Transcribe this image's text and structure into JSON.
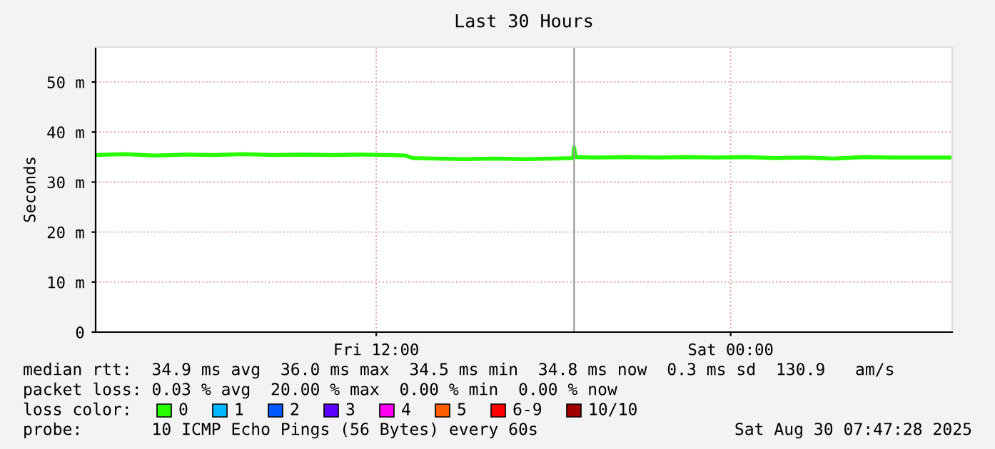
{
  "chart_data": {
    "type": "line",
    "title": "Last 30 Hours",
    "ylabel": "Seconds",
    "xlim": [
      "2025-08-29T02:30",
      "2025-08-30T07:30"
    ],
    "xticks": [
      {
        "value": "2025-08-29T12:00",
        "label": "Fri 12:00"
      },
      {
        "value": "2025-08-30T00:00",
        "label": "Sat 00:00"
      }
    ],
    "ylim": [
      0,
      57
    ],
    "yticks": [
      0,
      {
        "value": 10,
        "label": "10 m"
      },
      {
        "value": 20,
        "label": "20 m"
      },
      {
        "value": 30,
        "label": "30 m"
      },
      {
        "value": 40,
        "label": "40 m"
      },
      {
        "value": 50,
        "label": "50 m"
      }
    ],
    "grid": true,
    "legend": "bottom",
    "legend_title": "loss color:",
    "series": [
      {
        "name": "0",
        "color": "#26ff00",
        "x": [
          "2025-08-29T02:30",
          "2025-08-29T03:30",
          "2025-08-29T04:30",
          "2025-08-29T05:30",
          "2025-08-29T06:30",
          "2025-08-29T07:30",
          "2025-08-29T08:30",
          "2025-08-29T09:30",
          "2025-08-29T10:30",
          "2025-08-29T11:30",
          "2025-08-29T12:30",
          "2025-08-29T13:00",
          "2025-08-29T13:15",
          "2025-08-29T14:00",
          "2025-08-29T15:00",
          "2025-08-29T16:00",
          "2025-08-29T17:00",
          "2025-08-29T18:00",
          "2025-08-29T18:40",
          "2025-08-29T18:42",
          "2025-08-29T18:45",
          "2025-08-29T19:30",
          "2025-08-29T20:30",
          "2025-08-29T21:30",
          "2025-08-29T22:30",
          "2025-08-29T23:30",
          "2025-08-30T00:30",
          "2025-08-30T01:30",
          "2025-08-30T02:30",
          "2025-08-30T03:30",
          "2025-08-30T04:30",
          "2025-08-30T05:30",
          "2025-08-30T06:30",
          "2025-08-30T07:30"
        ],
        "values": [
          35.4,
          35.6,
          35.3,
          35.5,
          35.4,
          35.6,
          35.4,
          35.5,
          35.4,
          35.5,
          35.4,
          35.3,
          34.8,
          34.7,
          34.6,
          34.7,
          34.6,
          34.7,
          34.8,
          36.9,
          35.0,
          34.9,
          35.0,
          34.9,
          35.0,
          34.9,
          35.0,
          34.8,
          34.9,
          34.7,
          35.0,
          34.9,
          34.9,
          34.9
        ]
      },
      {
        "name": "1",
        "color": "#00b8ff"
      },
      {
        "name": "2",
        "color": "#0059ff"
      },
      {
        "name": "3",
        "color": "#5e00ff"
      },
      {
        "name": "4",
        "color": "#ff00f2"
      },
      {
        "name": "5",
        "color": "#ff5e00"
      },
      {
        "name": "6-9",
        "color": "#ff0000"
      },
      {
        "name": "10/10",
        "color": "#a10000"
      }
    ],
    "ref_lines": [
      {
        "axis": "x",
        "value": "2025-08-29T18:42",
        "label": null,
        "color": "#999999"
      }
    ],
    "annotations": [
      "median rtt:  34.9 ms avg  36.0 ms max  34.5 ms min  34.8 ms now  0.3 ms sd  130.9   am/s",
      "packet loss: 0.03 % avg  20.00 % max  0.00 % min  0.00 % now",
      "probe:       10 ICMP Echo Pings (56 Bytes) every 60s",
      "Sat Aug 30 07:47:28 2025"
    ]
  }
}
